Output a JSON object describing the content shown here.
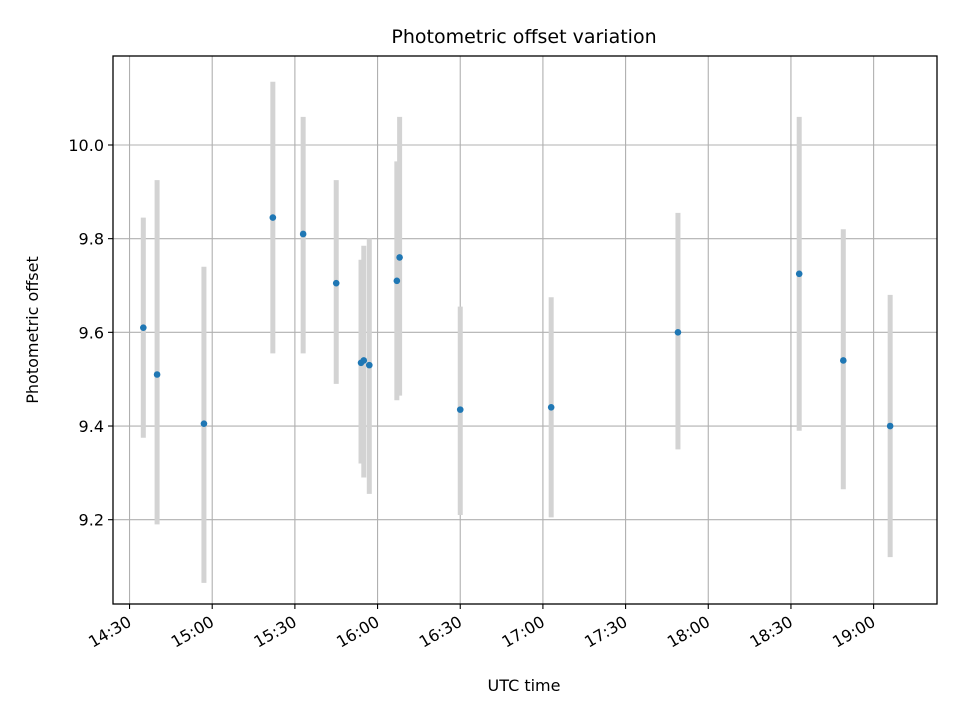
{
  "chart_data": {
    "type": "scatter",
    "title": "Photometric offset variation",
    "xlabel": "UTC time",
    "ylabel": "Photometric offset",
    "x_tick_labels": [
      "14:30",
      "15:00",
      "15:30",
      "16:00",
      "16:30",
      "17:00",
      "17:30",
      "18:00",
      "18:30",
      "19:00"
    ],
    "y_tick_labels": [
      "9.2",
      "9.4",
      "9.6",
      "9.8",
      "10.0"
    ],
    "y_ticks": [
      9.2,
      9.4,
      9.6,
      9.8,
      10.0
    ],
    "xlim": [
      "14:24",
      "19:23"
    ],
    "ylim": [
      9.02,
      10.19
    ],
    "grid": true,
    "marker_color": "#1f77b4",
    "errorbar_color": "#d3d3d3",
    "points": [
      {
        "x": "14:35",
        "y": 9.61,
        "ylow": 9.375,
        "yhigh": 9.845
      },
      {
        "x": "14:40",
        "y": 9.51,
        "ylow": 9.19,
        "yhigh": 9.925
      },
      {
        "x": "14:57",
        "y": 9.405,
        "ylow": 9.065,
        "yhigh": 9.74
      },
      {
        "x": "15:22",
        "y": 9.845,
        "ylow": 9.555,
        "yhigh": 10.135
      },
      {
        "x": "15:33",
        "y": 9.81,
        "ylow": 9.555,
        "yhigh": 10.06
      },
      {
        "x": "15:45",
        "y": 9.705,
        "ylow": 9.49,
        "yhigh": 9.925
      },
      {
        "x": "15:54",
        "y": 9.535,
        "ylow": 9.32,
        "yhigh": 9.755
      },
      {
        "x": "15:55",
        "y": 9.54,
        "ylow": 9.29,
        "yhigh": 9.785
      },
      {
        "x": "15:57",
        "y": 9.53,
        "ylow": 9.255,
        "yhigh": 9.8
      },
      {
        "x": "16:07",
        "y": 9.71,
        "ylow": 9.455,
        "yhigh": 9.965
      },
      {
        "x": "16:08",
        "y": 9.76,
        "ylow": 9.465,
        "yhigh": 10.06
      },
      {
        "x": "16:30",
        "y": 9.435,
        "ylow": 9.21,
        "yhigh": 9.655
      },
      {
        "x": "17:03",
        "y": 9.44,
        "ylow": 9.205,
        "yhigh": 9.675
      },
      {
        "x": "17:49",
        "y": 9.6,
        "ylow": 9.35,
        "yhigh": 9.855
      },
      {
        "x": "18:33",
        "y": 9.725,
        "ylow": 9.39,
        "yhigh": 10.06
      },
      {
        "x": "18:49",
        "y": 9.54,
        "ylow": 9.265,
        "yhigh": 9.82
      },
      {
        "x": "19:06",
        "y": 9.4,
        "ylow": 9.12,
        "yhigh": 9.68
      }
    ]
  }
}
